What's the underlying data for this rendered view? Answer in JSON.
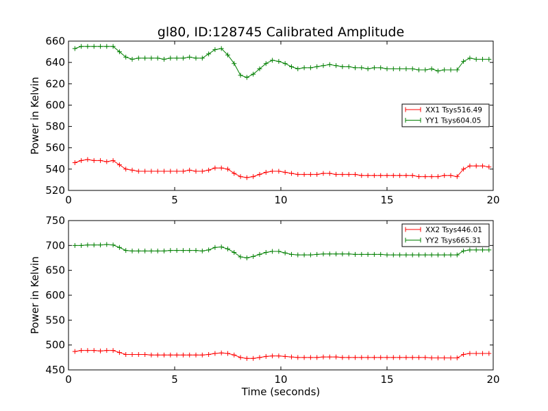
{
  "title": "gl80, ID:128745 Calibrated Amplitude",
  "colors": {
    "xx": "#ff0000",
    "yy": "#007f00"
  },
  "chart_data": [
    {
      "type": "line",
      "xlim": [
        0,
        20
      ],
      "ylim": [
        520,
        660
      ],
      "xticks": [
        0,
        5,
        10,
        15,
        20
      ],
      "yticks": [
        520,
        540,
        560,
        580,
        600,
        620,
        640,
        660
      ],
      "xlabel": "",
      "ylabel": "Power in Kelvin",
      "legend": "center-right",
      "x": [
        0.3,
        0.6,
        0.9,
        1.2,
        1.5,
        1.8,
        2.1,
        2.4,
        2.7,
        3.0,
        3.3,
        3.6,
        3.9,
        4.2,
        4.5,
        4.8,
        5.1,
        5.4,
        5.7,
        6.0,
        6.3,
        6.6,
        6.9,
        7.2,
        7.5,
        7.8,
        8.1,
        8.4,
        8.7,
        9.0,
        9.3,
        9.6,
        9.9,
        10.2,
        10.5,
        10.8,
        11.1,
        11.4,
        11.7,
        12.0,
        12.3,
        12.6,
        12.9,
        13.2,
        13.5,
        13.8,
        14.1,
        14.4,
        14.7,
        15.0,
        15.3,
        15.6,
        15.9,
        16.2,
        16.5,
        16.8,
        17.1,
        17.4,
        17.7,
        18.0,
        18.3,
        18.6,
        18.9,
        19.2,
        19.5,
        19.8
      ],
      "series": [
        {
          "name": "XX1 Tsys516.49",
          "color": "#ff0000",
          "values": [
            546,
            548,
            549,
            548,
            548,
            547,
            548,
            544,
            540,
            539,
            538,
            538,
            538,
            538,
            538,
            538,
            538,
            538,
            539,
            538,
            538,
            539,
            541,
            541,
            540,
            536,
            533,
            532,
            533,
            535,
            537,
            538,
            538,
            537,
            536,
            535,
            535,
            535,
            535,
            536,
            536,
            535,
            535,
            535,
            535,
            534,
            534,
            534,
            534,
            534,
            534,
            534,
            534,
            534,
            533,
            533,
            533,
            533,
            534,
            534,
            533,
            540,
            543,
            543,
            543,
            542
          ]
        },
        {
          "name": "YY1 Tsys604.05",
          "color": "#007f00",
          "values": [
            653,
            655,
            655,
            655,
            655,
            655,
            655,
            650,
            645,
            643,
            644,
            644,
            644,
            644,
            643,
            644,
            644,
            644,
            645,
            644,
            644,
            648,
            652,
            653,
            647,
            639,
            628,
            626,
            629,
            634,
            639,
            642,
            641,
            639,
            636,
            634,
            635,
            635,
            636,
            637,
            638,
            637,
            636,
            636,
            635,
            635,
            634,
            635,
            635,
            634,
            634,
            634,
            634,
            634,
            633,
            633,
            634,
            632,
            633,
            633,
            633,
            641,
            644,
            643,
            643,
            643
          ]
        }
      ]
    },
    {
      "type": "line",
      "xlim": [
        0,
        20
      ],
      "ylim": [
        450,
        750
      ],
      "xticks": [
        0,
        5,
        10,
        15,
        20
      ],
      "yticks": [
        450,
        500,
        550,
        600,
        650,
        700,
        750
      ],
      "xlabel": "Time (seconds)",
      "ylabel": "Power in Kelvin",
      "legend": "top-right",
      "x": [
        0.3,
        0.6,
        0.9,
        1.2,
        1.5,
        1.8,
        2.1,
        2.4,
        2.7,
        3.0,
        3.3,
        3.6,
        3.9,
        4.2,
        4.5,
        4.8,
        5.1,
        5.4,
        5.7,
        6.0,
        6.3,
        6.6,
        6.9,
        7.2,
        7.5,
        7.8,
        8.1,
        8.4,
        8.7,
        9.0,
        9.3,
        9.6,
        9.9,
        10.2,
        10.5,
        10.8,
        11.1,
        11.4,
        11.7,
        12.0,
        12.3,
        12.6,
        12.9,
        13.2,
        13.5,
        13.8,
        14.1,
        14.4,
        14.7,
        15.0,
        15.3,
        15.6,
        15.9,
        16.2,
        16.5,
        16.8,
        17.1,
        17.4,
        17.7,
        18.0,
        18.3,
        18.6,
        18.9,
        19.2,
        19.5,
        19.8
      ],
      "series": [
        {
          "name": "XX2 Tsys446.01",
          "color": "#ff0000",
          "values": [
            487,
            489,
            489,
            489,
            488,
            489,
            489,
            485,
            481,
            481,
            481,
            481,
            480,
            480,
            480,
            480,
            480,
            480,
            480,
            480,
            480,
            481,
            483,
            484,
            483,
            480,
            475,
            473,
            473,
            475,
            477,
            478,
            478,
            477,
            476,
            475,
            475,
            475,
            475,
            476,
            476,
            476,
            475,
            475,
            475,
            475,
            475,
            475,
            475,
            475,
            475,
            475,
            475,
            475,
            475,
            475,
            474,
            474,
            474,
            474,
            474,
            481,
            483,
            483,
            483,
            483
          ]
        },
        {
          "name": "YY2 Tsys665.31",
          "color": "#007f00",
          "values": [
            700,
            700,
            701,
            701,
            701,
            702,
            701,
            696,
            690,
            689,
            689,
            689,
            689,
            689,
            689,
            690,
            690,
            690,
            690,
            690,
            689,
            691,
            696,
            697,
            693,
            686,
            677,
            675,
            678,
            682,
            686,
            688,
            688,
            685,
            682,
            681,
            681,
            681,
            682,
            683,
            683,
            683,
            683,
            683,
            682,
            682,
            682,
            682,
            682,
            681,
            681,
            681,
            681,
            681,
            681,
            681,
            681,
            681,
            681,
            681,
            681,
            689,
            691,
            691,
            691,
            691
          ]
        }
      ]
    }
  ]
}
